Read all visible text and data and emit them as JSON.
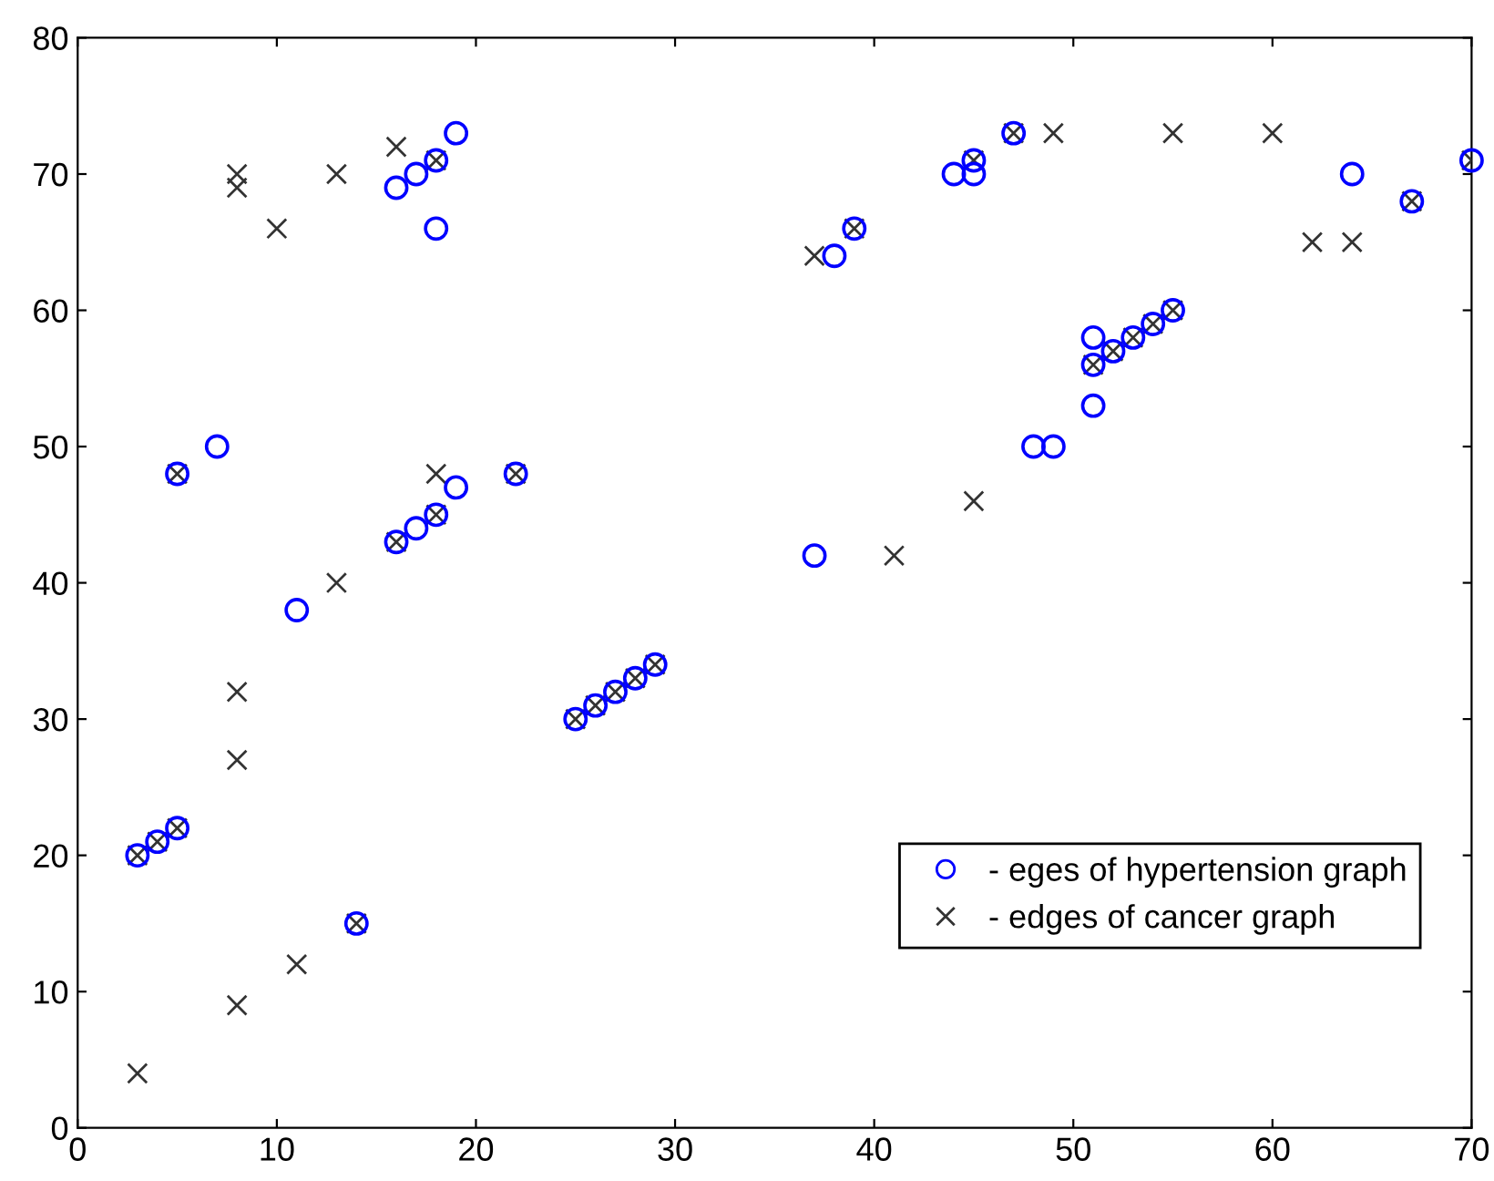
{
  "chart_data": {
    "type": "scatter",
    "xlim": [
      0,
      70
    ],
    "ylim": [
      0,
      80
    ],
    "xticks": [
      0,
      10,
      20,
      30,
      40,
      50,
      60,
      70
    ],
    "yticks": [
      0,
      10,
      20,
      30,
      40,
      50,
      60,
      70,
      80
    ],
    "grid": false,
    "legend": "bottom right",
    "series": [
      {
        "name": "- eges of hypertension graph",
        "color": "#0000ff",
        "marker": "circle",
        "x": [
          3,
          4,
          5,
          5,
          7,
          11,
          14,
          16,
          17,
          18,
          19,
          22,
          16,
          17,
          18,
          18,
          19,
          25,
          26,
          27,
          28,
          29,
          37,
          38,
          39,
          44,
          45,
          45,
          47,
          48,
          49,
          51,
          51,
          51,
          52,
          53,
          54,
          55,
          64,
          67,
          70
        ],
        "values": [
          20,
          21,
          22,
          48,
          50,
          38,
          15,
          43,
          44,
          45,
          47,
          48,
          69,
          70,
          71,
          66,
          73,
          30,
          31,
          32,
          33,
          34,
          42,
          64,
          66,
          70,
          70,
          71,
          73,
          50,
          50,
          53,
          56,
          58,
          57,
          58,
          59,
          60,
          70,
          68,
          71
        ]
      },
      {
        "name": "- edges of cancer graph",
        "color": "#333333",
        "marker": "cross",
        "x": [
          3,
          4,
          5,
          14,
          25,
          26,
          27,
          28,
          29,
          5,
          22,
          16,
          18,
          18,
          39,
          45,
          47,
          51,
          52,
          53,
          54,
          55,
          67,
          70,
          3,
          8,
          8,
          8,
          8,
          8,
          10,
          11,
          13,
          13,
          16,
          18,
          37,
          41,
          45,
          49,
          55,
          60,
          62,
          64
        ],
        "values": [
          20,
          21,
          22,
          15,
          30,
          31,
          32,
          33,
          34,
          48,
          48,
          43,
          45,
          71,
          66,
          71,
          73,
          56,
          57,
          58,
          59,
          60,
          68,
          71,
          4,
          9,
          27,
          32,
          69,
          70,
          66,
          12,
          40,
          70,
          72,
          48,
          64,
          42,
          46,
          73,
          73,
          73,
          65,
          65
        ]
      }
    ]
  }
}
